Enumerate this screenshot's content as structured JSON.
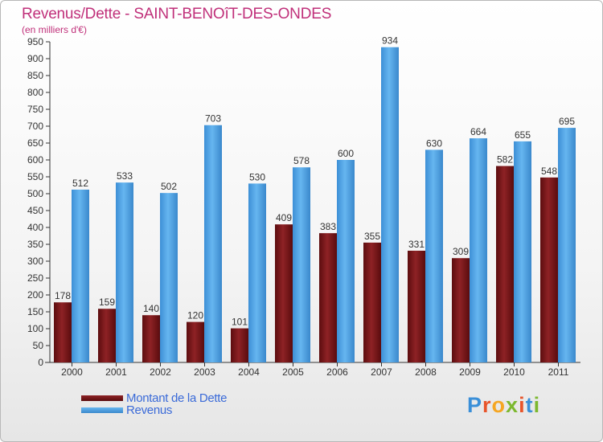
{
  "header": {
    "title": "Revenus/Dette - SAINT-BENOîT-DES-ONDES",
    "subtitle": "(en milliers d'€)"
  },
  "brand": {
    "letters": [
      "P",
      "r",
      "o",
      "x",
      "i",
      "t",
      "i"
    ],
    "colors": [
      "#3a8fd8",
      "#e8542a",
      "#f5a623",
      "#7cb82f",
      "#e8542a",
      "#3a8fd8",
      "#7cb82f"
    ]
  },
  "chart_data": {
    "type": "bar",
    "categories": [
      "2000",
      "2001",
      "2002",
      "2003",
      "2004",
      "2005",
      "2006",
      "2007",
      "2008",
      "2009",
      "2010",
      "2011"
    ],
    "series": [
      {
        "name": "Montant de la Dette",
        "color": "#7a1416",
        "values": [
          178,
          159,
          140,
          120,
          101,
          409,
          383,
          355,
          331,
          309,
          582,
          548
        ]
      },
      {
        "name": "Revenus",
        "color": "#4fa3e6",
        "values": [
          512,
          533,
          502,
          703,
          530,
          578,
          600,
          934,
          630,
          664,
          655,
          695
        ]
      }
    ],
    "ylim": [
      0,
      950
    ],
    "yticks": [
      0,
      50,
      100,
      150,
      200,
      250,
      300,
      350,
      400,
      450,
      500,
      550,
      600,
      650,
      700,
      750,
      800,
      850,
      900,
      950
    ],
    "grid": false,
    "legend": "bottom-left"
  }
}
